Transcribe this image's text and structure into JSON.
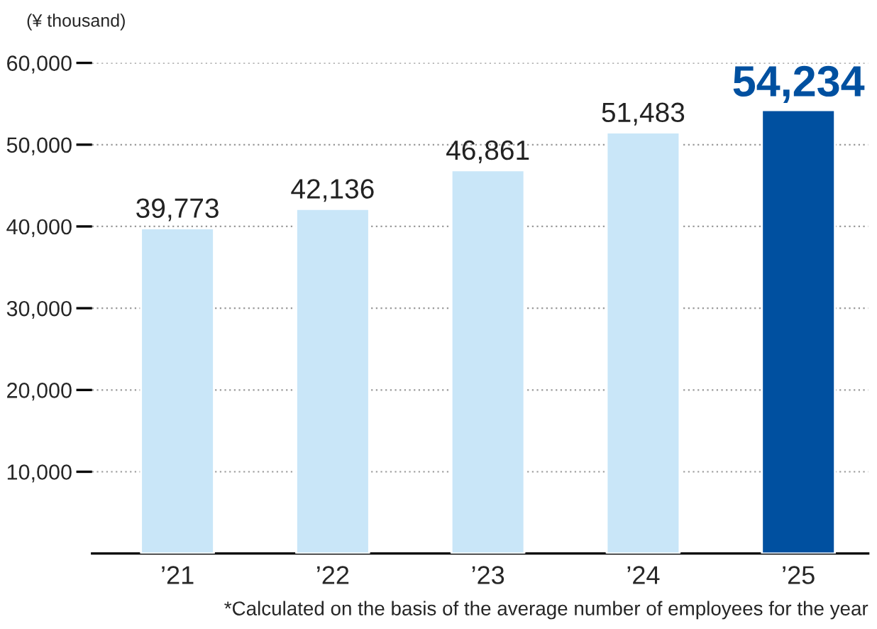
{
  "chart_data": {
    "type": "bar",
    "ylabel": "(¥ thousand)",
    "categories": [
      "’21",
      "’22",
      "’23",
      "’24",
      "’25"
    ],
    "values": [
      39773,
      42136,
      46861,
      51483,
      54234
    ],
    "value_labels": [
      "39,773",
      "42,136",
      "46,861",
      "51,483",
      "54,234"
    ],
    "colors": [
      "#c9e6f8",
      "#c9e6f8",
      "#c9e6f8",
      "#c9e6f8",
      "#0050a0"
    ],
    "ylim": [
      0,
      60000
    ],
    "yticks": [
      {
        "value": 10000,
        "label": "10,000"
      },
      {
        "value": 20000,
        "label": "20,000"
      },
      {
        "value": 30000,
        "label": "30,000"
      },
      {
        "value": 40000,
        "label": "40,000"
      },
      {
        "value": 50000,
        "label": "50,000"
      },
      {
        "value": 60000,
        "label": "60,000"
      }
    ],
    "grid": "y",
    "annotations": [
      "*Calculated on the basis of the average number of employees for the year"
    ]
  }
}
